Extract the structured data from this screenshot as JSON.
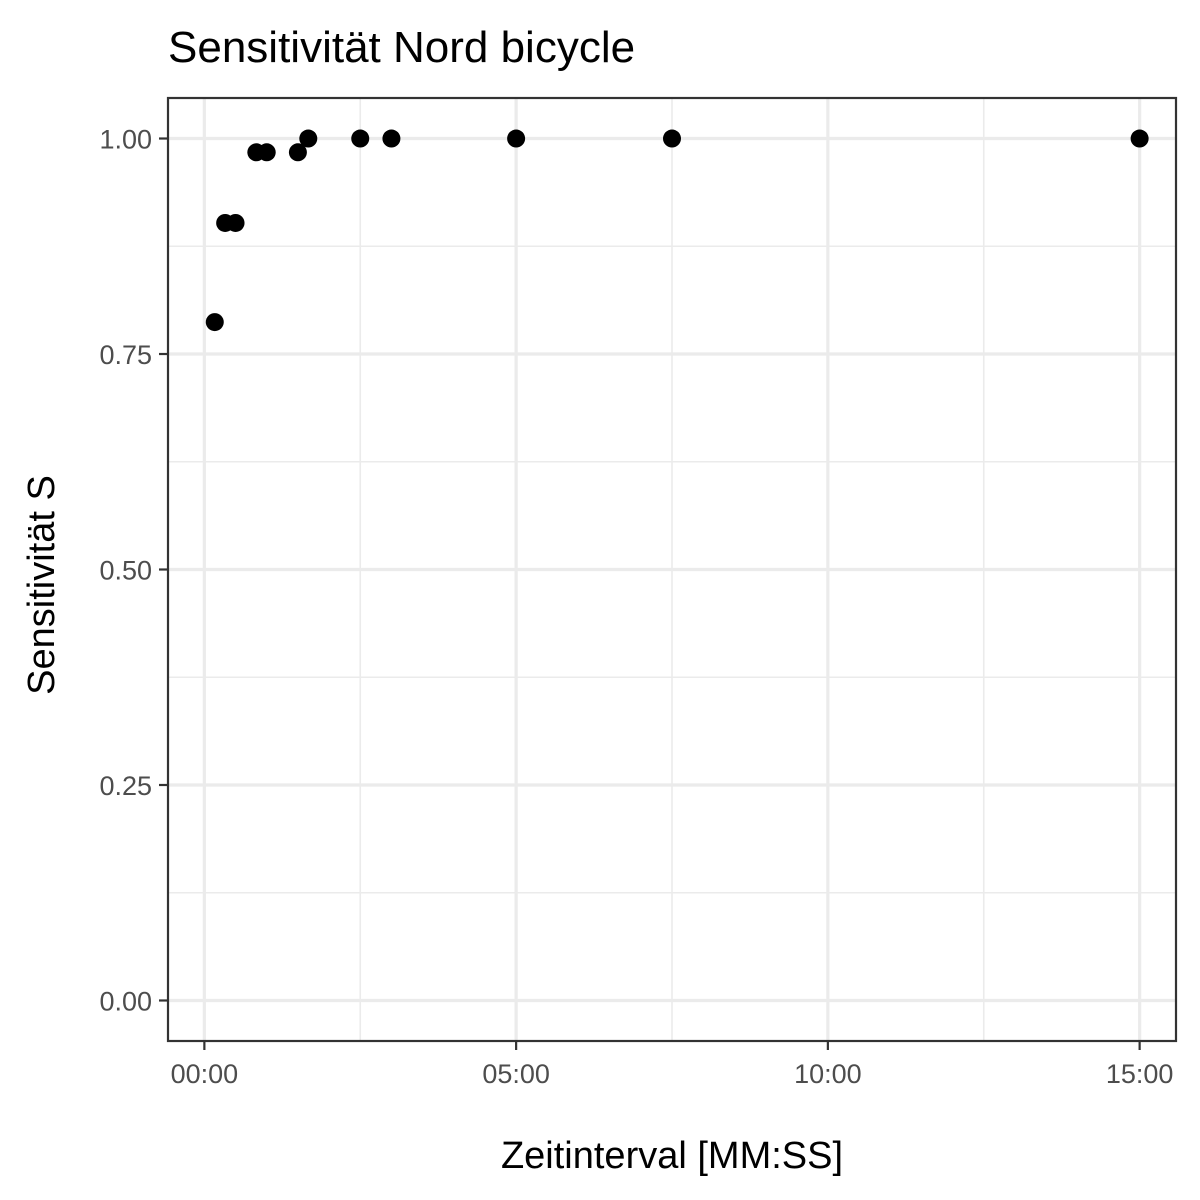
{
  "chart_data": {
    "type": "scatter",
    "title": "Sensitivität Nord bicycle",
    "xlabel": "Zeitinterval [MM:SS]",
    "ylabel": "Sensitivität S",
    "x_unit": "MM:SS",
    "x_ticks": [
      {
        "value": "00:00",
        "label": "00:00"
      },
      {
        "value": "05:00",
        "label": "05:00"
      },
      {
        "value": "10:00",
        "label": "10:00"
      },
      {
        "value": "15:00",
        "label": "15:00"
      }
    ],
    "y_ticks": [
      {
        "value": 0.0,
        "label": "0.00"
      },
      {
        "value": 0.25,
        "label": "0.25"
      },
      {
        "value": 0.5,
        "label": "0.50"
      },
      {
        "value": 0.75,
        "label": "0.75"
      },
      {
        "value": 1.0,
        "label": "1.00"
      }
    ],
    "xlim": [
      "-00:35",
      "15:35"
    ],
    "ylim": [
      -0.047,
      1.047
    ],
    "grid": true,
    "legend": "none",
    "point_color": "#000000",
    "series": [
      {
        "points": [
          {
            "x": "00:10",
            "y": 0.787
          },
          {
            "x": "00:20",
            "y": 0.902
          },
          {
            "x": "00:30",
            "y": 0.902
          },
          {
            "x": "00:50",
            "y": 0.984
          },
          {
            "x": "01:00",
            "y": 0.984
          },
          {
            "x": "01:30",
            "y": 0.984
          },
          {
            "x": "01:40",
            "y": 1.0
          },
          {
            "x": "02:30",
            "y": 1.0
          },
          {
            "x": "03:00",
            "y": 1.0
          },
          {
            "x": "05:00",
            "y": 1.0
          },
          {
            "x": "07:30",
            "y": 1.0
          },
          {
            "x": "15:00",
            "y": 1.0
          }
        ]
      }
    ]
  }
}
